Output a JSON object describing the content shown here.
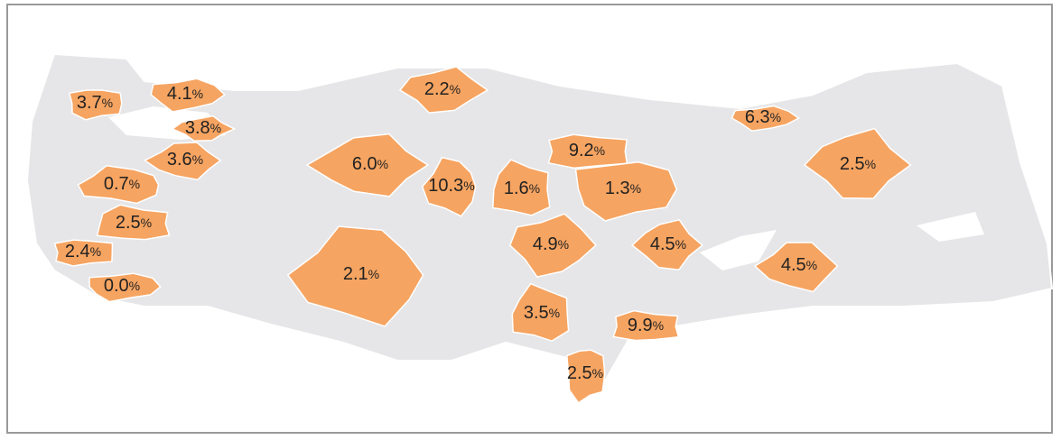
{
  "map": {
    "unit": "%",
    "values": [
      3.7,
      4.1,
      3.8,
      3.6,
      0.7,
      2.5,
      2.4,
      0.0,
      2.2,
      6.0,
      10.3,
      1.6,
      9.2,
      1.3,
      4.9,
      4.5,
      2.1,
      3.5,
      9.9,
      2.5,
      6.3,
      2.5,
      4.5
    ],
    "value_labels": [
      "3.7",
      "4.1",
      "3.8",
      "3.6",
      "0.7",
      "2.5",
      "2.4",
      "0.0",
      "2.2",
      "6.0",
      "10.3",
      "1.6",
      "9.2",
      "1.3",
      "4.9",
      "4.5",
      "2.1",
      "3.5",
      "9.9",
      "2.5",
      "6.3",
      "2.5",
      "4.5"
    ]
  }
}
